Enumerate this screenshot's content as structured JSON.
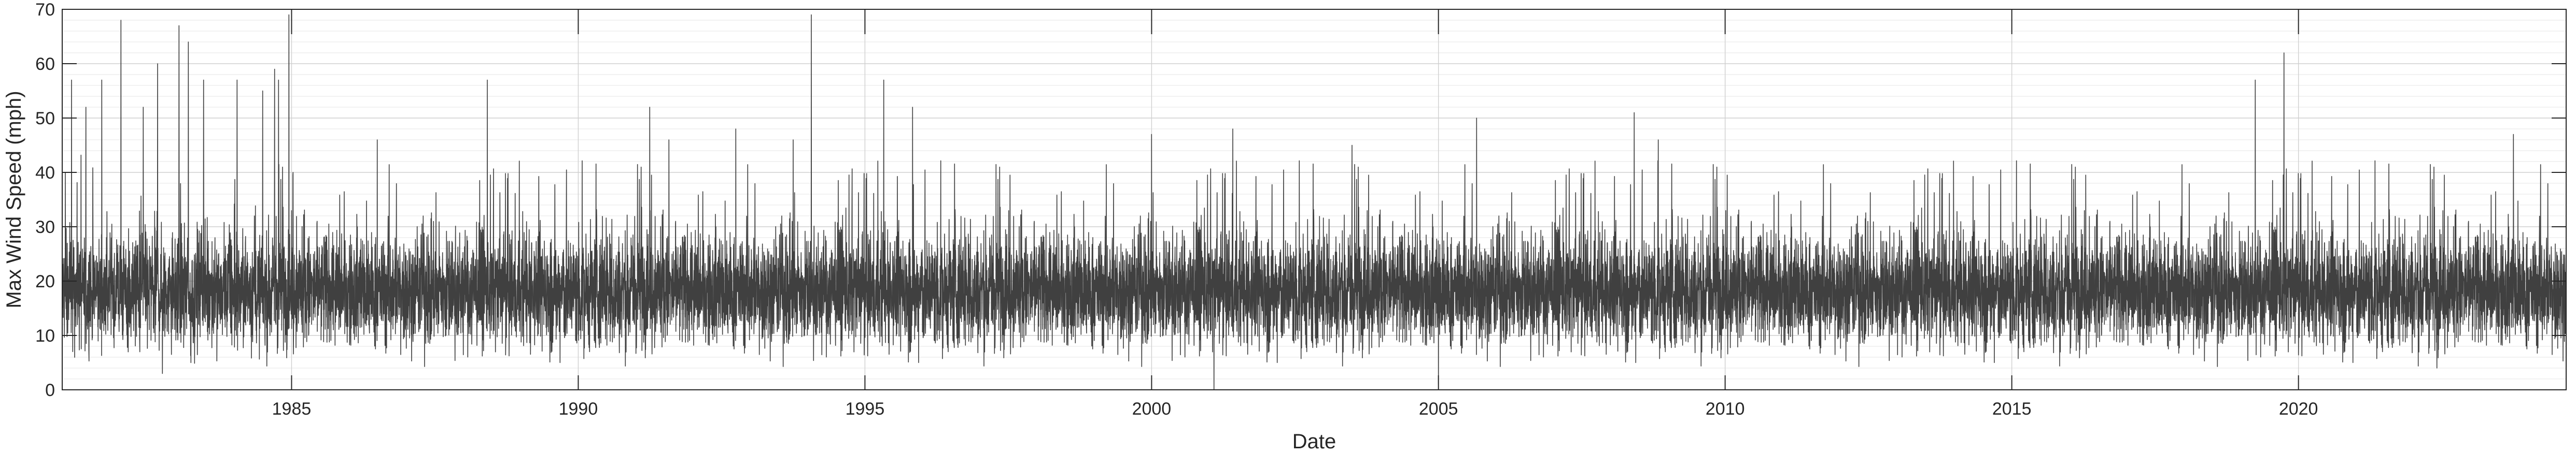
{
  "chart_data": {
    "type": "line",
    "xlabel": "Date",
    "ylabel": "Max Wind Speed (mph)",
    "xlim": [
      "1981-01-01",
      "2024-09-01"
    ],
    "ylim": [
      0,
      70
    ],
    "x_ticks": [
      "1985",
      "1990",
      "1995",
      "2000",
      "2005",
      "2010",
      "2015",
      "2020"
    ],
    "y_ticks": [
      0,
      10,
      20,
      30,
      40,
      50,
      60,
      70
    ],
    "grid": true,
    "minor_grid_y": true,
    "line_color": "#404040",
    "baseline": 18,
    "spikes": [
      [
        "1981-03-01",
        57
      ],
      [
        "1981-06-01",
        52
      ],
      [
        "1981-09-10",
        57
      ],
      [
        "1982-01-10",
        68
      ],
      [
        "1982-06-01",
        52
      ],
      [
        "1982-09-01",
        60
      ],
      [
        "1983-01-15",
        67
      ],
      [
        "1983-03-15",
        64
      ],
      [
        "1983-06-20",
        57
      ],
      [
        "1983-09-01",
        28
      ],
      [
        "1984-01-20",
        57
      ],
      [
        "1984-07-01",
        55
      ],
      [
        "1984-09-15",
        59
      ],
      [
        "1984-10-10",
        57
      ],
      [
        "1984-12-15",
        69
      ],
      [
        "1985-01-10",
        40
      ],
      [
        "1986-07-01",
        46
      ],
      [
        "1988-06-01",
        57
      ],
      [
        "1991-04-01",
        52
      ],
      [
        "1991-08-01",
        46
      ],
      [
        "1992-10-01",
        48
      ],
      [
        "1993-10-01",
        46
      ],
      [
        "1994-01-25",
        69
      ],
      [
        "1995-05-01",
        57
      ],
      [
        "1995-11-01",
        52
      ],
      [
        "2000-01-01",
        47
      ],
      [
        "2001-06-01",
        48
      ],
      [
        "2003-07-01",
        45
      ],
      [
        "2005-09-01",
        50
      ],
      [
        "2008-06-01",
        51
      ],
      [
        "2008-11-01",
        46
      ],
      [
        "2019-04-01",
        57
      ],
      [
        "2019-10-01",
        62
      ],
      [
        "2023-10-01",
        47
      ]
    ],
    "dips": [
      [
        "1982-10-01",
        3
      ],
      [
        "1983-04-01",
        5
      ],
      [
        "2001-02-01",
        0
      ],
      [
        "2005-01-01",
        1
      ],
      [
        "2022-06-01",
        4
      ]
    ]
  }
}
